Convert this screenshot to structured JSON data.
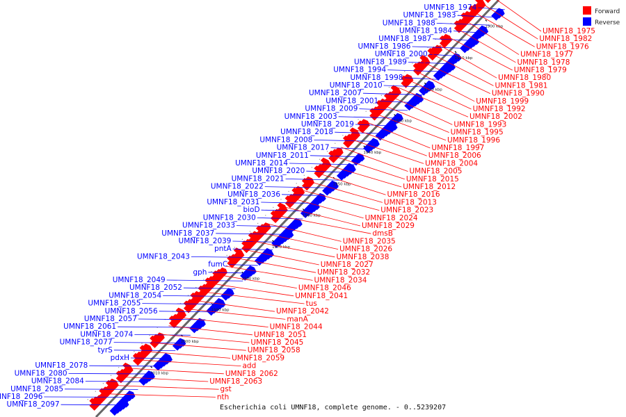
{
  "title": "Escherichia coli UMNF18, complete genome. - 0..5239207",
  "colors": {
    "forward": "#ff0000",
    "reverse": "#0000ff",
    "backbone": "#666666"
  },
  "legend": [
    {
      "label": "Forward",
      "color": "#ff0000"
    },
    {
      "label": "Reverse",
      "color": "#0000ff"
    }
  ],
  "ticks": [
    "1900 kbp",
    "1910 kbp",
    "1920 kbp",
    "1930 kbp",
    "1940 kbp",
    "1950 kbp",
    "1960 kbp",
    "1970 kbp",
    "1980 kbp",
    "1990 kbp",
    "2000 kbp",
    "2010 kbp"
  ],
  "reverse_labels": [
    "UMNF18_1974",
    "UMNF18_1983",
    "UMNF18_1988",
    "UMNF18_1984",
    "UMNF18_1987",
    "UMNF18_1986",
    "UMNF18_2000",
    "UMNF18_1989",
    "UMNF18_1994",
    "UMNF18_1998",
    "UMNF18_2010",
    "UMNF18_2007",
    "UMNF18_2001",
    "UMNF18_2009",
    "UMNF18_2003",
    "UMNF18_2019",
    "UMNF18_2018",
    "UMNF18_2008",
    "UMNF18_2017",
    "UMNF18_2011",
    "UMNF18_2014",
    "UMNF18_2020",
    "UMNF18_2021",
    "UMNF18_2022",
    "UMNF18_2036",
    "UMNF18_2031",
    "bioD",
    "UMNF18_2030",
    "UMNF18_2033",
    "UMNF18_2037",
    "UMNF18_2039",
    "pntA",
    "UMNF18_2043",
    "fumC",
    "gph",
    "UMNF18_2049",
    "UMNF18_2052",
    "UMNF18_2054",
    "UMNF18_2055",
    "UMNF18_2056",
    "UMNF18_2057",
    "UMNF18_2061",
    "UMNF18_2074",
    "UMNF18_2077",
    "tyrS",
    "pdxH",
    "UMNF18_2078",
    "UMNF18_2080",
    "UMNF18_2084",
    "UMNF18_2085",
    "UMNF18_2096",
    "UMNF18_2097"
  ],
  "forward_labels": [
    "UMNF18_1975",
    "UMNF18_1982",
    "UMNF18_1976",
    "UMNF18_1977",
    "UMNF18_1978",
    "UMNF18_1979",
    "UMNF18_1980",
    "UMNF18_1981",
    "UMNF18_1990",
    "UMNF18_1999",
    "UMNF18_1992",
    "UMNF18_2002",
    "UMNF18_1993",
    "UMNF18_1995",
    "UMNF18_1996",
    "UMNF18_1997",
    "UMNF18_2006",
    "UMNF18_2004",
    "UMNF18_2005",
    "UMNF18_2015",
    "UMNF18_2012",
    "UMNF18_2016",
    "UMNF18_2013",
    "UMNF18_2023",
    "UMNF18_2024",
    "UMNF18_2029",
    "dmsB",
    "UMNF18_2035",
    "UMNF18_2026",
    "UMNF18_2038",
    "UMNF18_2027",
    "UMNF18_2032",
    "UMNF18_2034",
    "UMNF18_2046",
    "UMNF18_2041",
    "tus",
    "UMNF18_2042",
    "manA",
    "UMNF18_2044",
    "UMNF18_2051",
    "UMNF18_2045",
    "UMNF18_2058",
    "UMNF18_2059",
    "add",
    "UMNF18_2062",
    "UMNF18_2063",
    "gst",
    "nth"
  ]
}
